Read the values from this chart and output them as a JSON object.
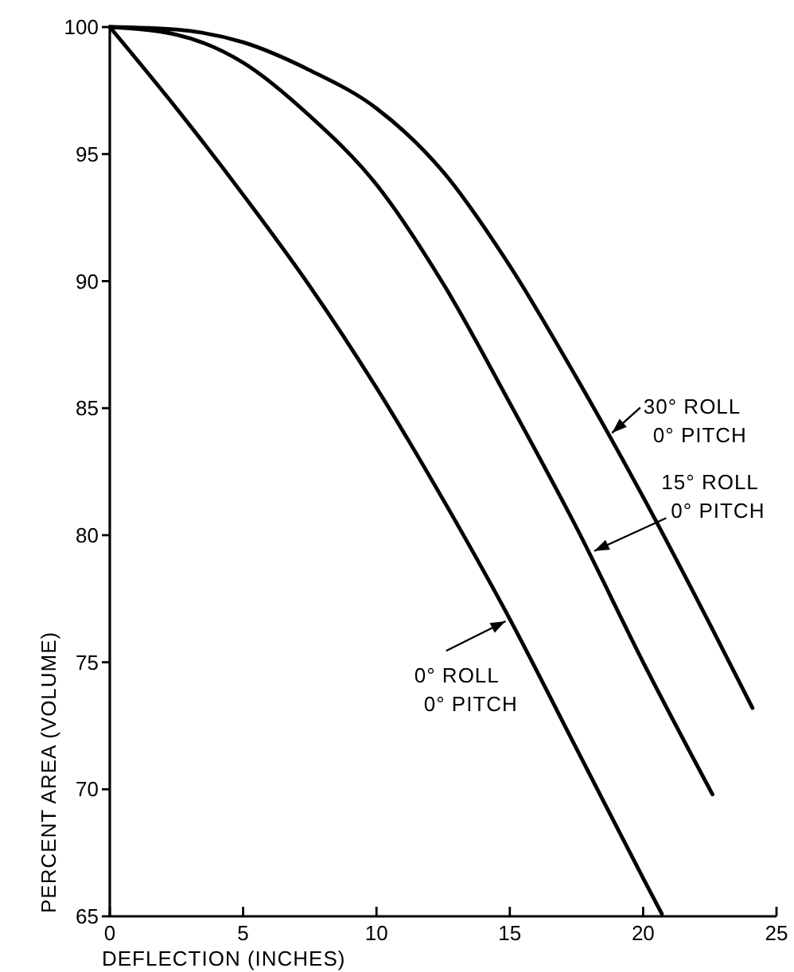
{
  "chart_data": {
    "type": "line",
    "xlabel": "DEFLECTION (INCHES)",
    "ylabel": "PERCENT AREA (VOLUME)",
    "xlim": [
      0,
      25
    ],
    "ylim": [
      65,
      100
    ],
    "xticks": [
      0,
      5,
      10,
      15,
      20,
      25
    ],
    "yticks": [
      65,
      70,
      75,
      80,
      85,
      90,
      95,
      100
    ],
    "grid": false,
    "marker": "none",
    "line_style": "solid",
    "series": [
      {
        "color": "#000000",
        "x": [
          0,
          2.5,
          5,
          7.5,
          10,
          12.5,
          15,
          17.5,
          20,
          20.7
        ],
        "values": [
          100,
          96.8,
          93.4,
          89.8,
          85.8,
          81.4,
          76.7,
          71.6,
          66.5,
          65.1
        ]
      },
      {
        "color": "#000000",
        "x": [
          0,
          2.5,
          5,
          7.5,
          10,
          12.5,
          15,
          17.5,
          20,
          22.6
        ],
        "values": [
          100,
          99.7,
          98.6,
          96.5,
          93.8,
          89.9,
          85.2,
          80.3,
          75,
          69.8
        ]
      },
      {
        "color": "#000000",
        "x": [
          0,
          2.5,
          5,
          7.5,
          10,
          12.5,
          15,
          17.5,
          20,
          22.5,
          24.1
        ],
        "values": [
          100,
          99.9,
          99.4,
          98.3,
          96.8,
          94.3,
          90.6,
          86.2,
          81.5,
          76.5,
          73.2
        ]
      }
    ],
    "annotations": [
      {
        "text": "30° ROLL\n0° PITCH",
        "x": 18.7,
        "y": 83.9
      },
      {
        "text": "15° ROLL\n0° PITCH",
        "x": 18,
        "y": 79.3
      },
      {
        "text": "0° ROLL\n0° PITCH",
        "x": 15,
        "y": 76.7
      }
    ]
  }
}
